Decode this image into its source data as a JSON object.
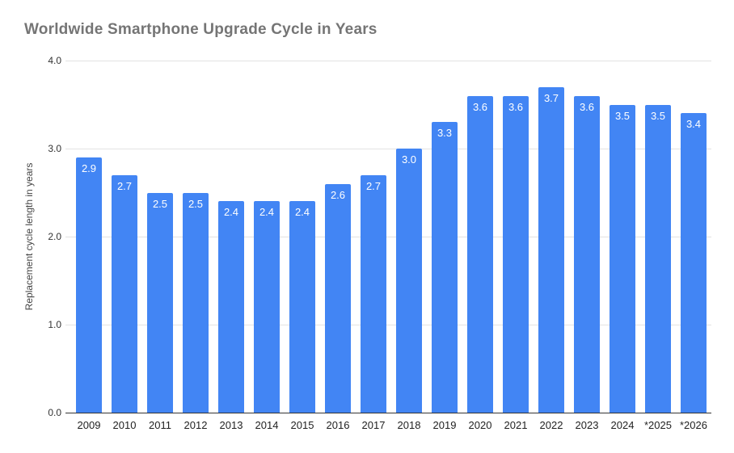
{
  "title": "Worldwide Smartphone Upgrade Cycle in Years",
  "colors": {
    "bar": "#4285f4",
    "bar_value_label": "#ffffff",
    "title_text": "#757575",
    "gridline": "#e3e3e3",
    "axis_line": "#333333",
    "tick_label": "#333333"
  },
  "chart_data": {
    "type": "bar",
    "title": "Worldwide Smartphone Upgrade Cycle in Years",
    "xlabel": "",
    "ylabel": "Replacement cycle length in years",
    "categories": [
      "2009",
      "2010",
      "2011",
      "2012",
      "2013",
      "2014",
      "2015",
      "2016",
      "2017",
      "2018",
      "2019",
      "2020",
      "2021",
      "2022",
      "2023",
      "2024",
      "*2025",
      "*2026"
    ],
    "values": [
      2.9,
      2.7,
      2.5,
      2.5,
      2.4,
      2.4,
      2.4,
      2.6,
      2.7,
      3.0,
      3.3,
      3.6,
      3.6,
      3.7,
      3.6,
      3.5,
      3.5,
      3.4
    ],
    "bar_labels": [
      "2.9",
      "2.7",
      "2.5",
      "2.5",
      "2.4",
      "2.4",
      "2.4",
      "2.6",
      "2.7",
      "3.0",
      "3.3",
      "3.6",
      "3.6",
      "3.7",
      "3.6",
      "3.5",
      "3.5",
      "3.4"
    ],
    "ylim": [
      0,
      4
    ],
    "ytick_values": [
      4.0,
      3.0,
      2.0,
      1.0,
      0.0
    ],
    "ytick_labels": [
      "4.0",
      "3.0",
      "2.0",
      "1.0",
      "0.0"
    ],
    "grid": true,
    "legend": "none",
    "bar_label_position": "inside-top"
  }
}
